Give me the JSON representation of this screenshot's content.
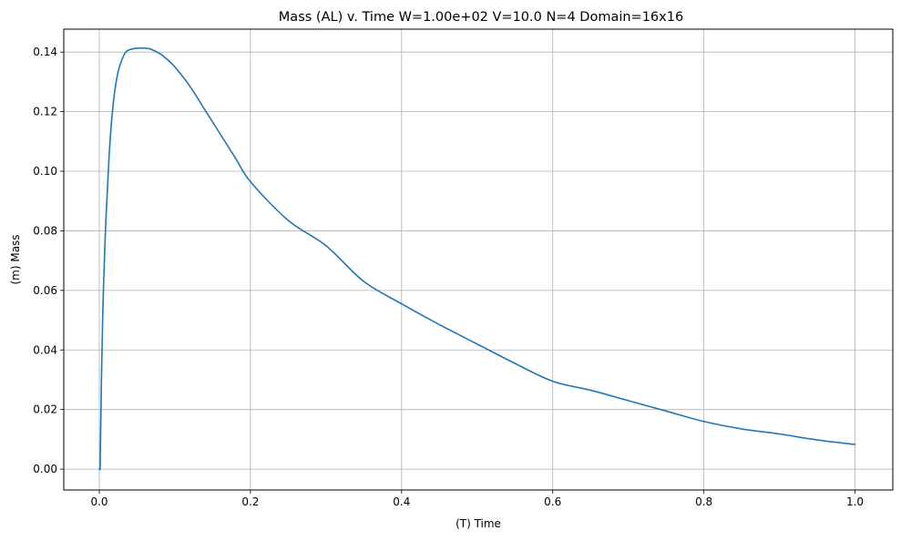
{
  "chart_data": {
    "type": "line",
    "title": "Mass (AL) v. Time   W=1.00e+02   V=10.0   N=4  Domain=16x16",
    "xlabel": "(T) Time",
    "ylabel": "(m) Mass",
    "xlim": [
      -0.047,
      1.05
    ],
    "ylim": [
      -0.007,
      0.1477
    ],
    "grid": true,
    "x_ticks": [
      0.0,
      0.2,
      0.4,
      0.6,
      0.8,
      1.0
    ],
    "x_tick_labels": [
      "0.0",
      "0.2",
      "0.4",
      "0.6",
      "0.8",
      "1.0"
    ],
    "y_ticks": [
      0.0,
      0.02,
      0.04,
      0.06,
      0.08,
      0.1,
      0.12,
      0.14
    ],
    "y_tick_labels": [
      "0.00",
      "0.02",
      "0.04",
      "0.06",
      "0.08",
      "0.10",
      "0.12",
      "0.14"
    ],
    "line_color": "#1f77b4",
    "series": [
      {
        "x": [
          0.0,
          0.001,
          0.003,
          0.005,
          0.008,
          0.01,
          0.013,
          0.016,
          0.02,
          0.025,
          0.03,
          0.035,
          0.04,
          0.05,
          0.06,
          0.065,
          0.07,
          0.08,
          0.09,
          0.1,
          0.12,
          0.14,
          0.16,
          0.18,
          0.2,
          0.25,
          0.3,
          0.35,
          0.4,
          0.45,
          0.5,
          0.55,
          0.6,
          0.65,
          0.7,
          0.75,
          0.8,
          0.85,
          0.9,
          0.95,
          1.0
        ],
        "values": [
          0.0,
          0.0,
          0.032,
          0.056,
          0.079,
          0.09,
          0.105,
          0.116,
          0.126,
          0.1335,
          0.1375,
          0.14,
          0.1408,
          0.1413,
          0.1413,
          0.1412,
          0.1408,
          0.1395,
          0.1375,
          0.135,
          0.1285,
          0.1205,
          0.1125,
          0.1045,
          0.0965,
          0.0835,
          0.075,
          0.063,
          0.0555,
          0.0485,
          0.042,
          0.0355,
          0.0295,
          0.0265,
          0.023,
          0.0195,
          0.016,
          0.0135,
          0.0118,
          0.0098,
          0.0083
        ]
      }
    ]
  }
}
